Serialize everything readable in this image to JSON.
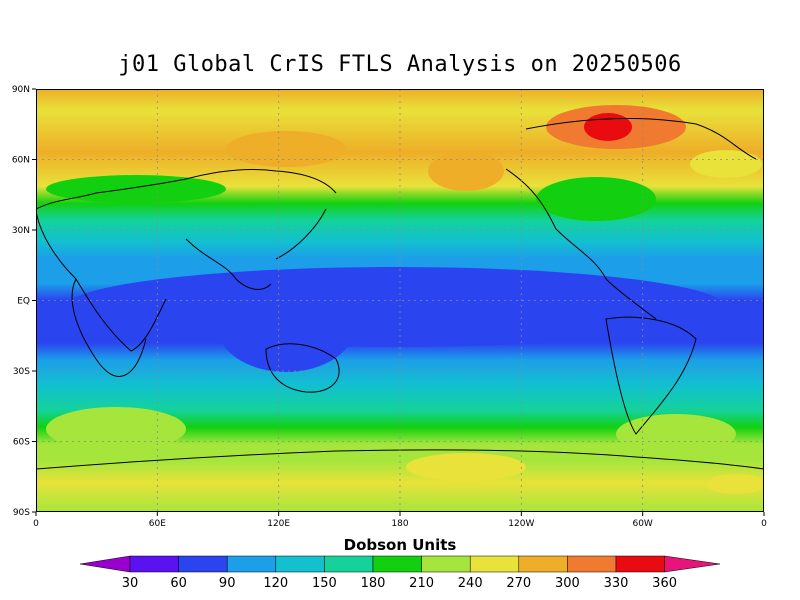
{
  "title": "j01 Global CrIS FTLS Analysis on 20250506",
  "colorbar": {
    "title": "Dobson Units",
    "ticks": [
      "30",
      "60",
      "90",
      "120",
      "150",
      "180",
      "210",
      "240",
      "270",
      "300",
      "330",
      "360"
    ],
    "colors": [
      "#9900d0",
      "#5a12f0",
      "#2a44f0",
      "#1c9ee8",
      "#12c0d0",
      "#14d29a",
      "#12d010",
      "#a6e63c",
      "#e8e23a",
      "#eeae28",
      "#f07a30",
      "#e80c10",
      "#e8147a"
    ]
  },
  "axes": {
    "x_ticks": [
      "0",
      "60E",
      "120E",
      "180",
      "120W",
      "60W",
      "0"
    ],
    "y_ticks": [
      "90N",
      "60N",
      "30N",
      "EQ",
      "30S",
      "60S",
      "90S"
    ]
  },
  "chart_data": {
    "type": "heatmap",
    "title": "j01 Global CrIS FTLS Analysis on 20250506",
    "xlabel": "",
    "ylabel": "",
    "units": "Dobson Units",
    "x_range": [
      0,
      360
    ],
    "y_range": [
      -90,
      90
    ],
    "grid": true,
    "legend": "bottom",
    "description_levels": [
      30,
      60,
      90,
      120,
      150,
      180,
      210,
      240,
      270,
      300,
      330,
      360
    ],
    "series": [
      {
        "latitude": 80,
        "value": 290
      },
      {
        "latitude": 60,
        "value": 300
      },
      {
        "latitude": 45,
        "value": 210
      },
      {
        "latitude": 30,
        "value": 150
      },
      {
        "latitude": 15,
        "value": 120
      },
      {
        "latitude": 0,
        "value": 90
      },
      {
        "latitude": -15,
        "value": 100
      },
      {
        "latitude": -30,
        "value": 145
      },
      {
        "latitude": -45,
        "value": 195
      },
      {
        "latitude": -60,
        "value": 240
      },
      {
        "latitude": -75,
        "value": 250
      }
    ]
  }
}
